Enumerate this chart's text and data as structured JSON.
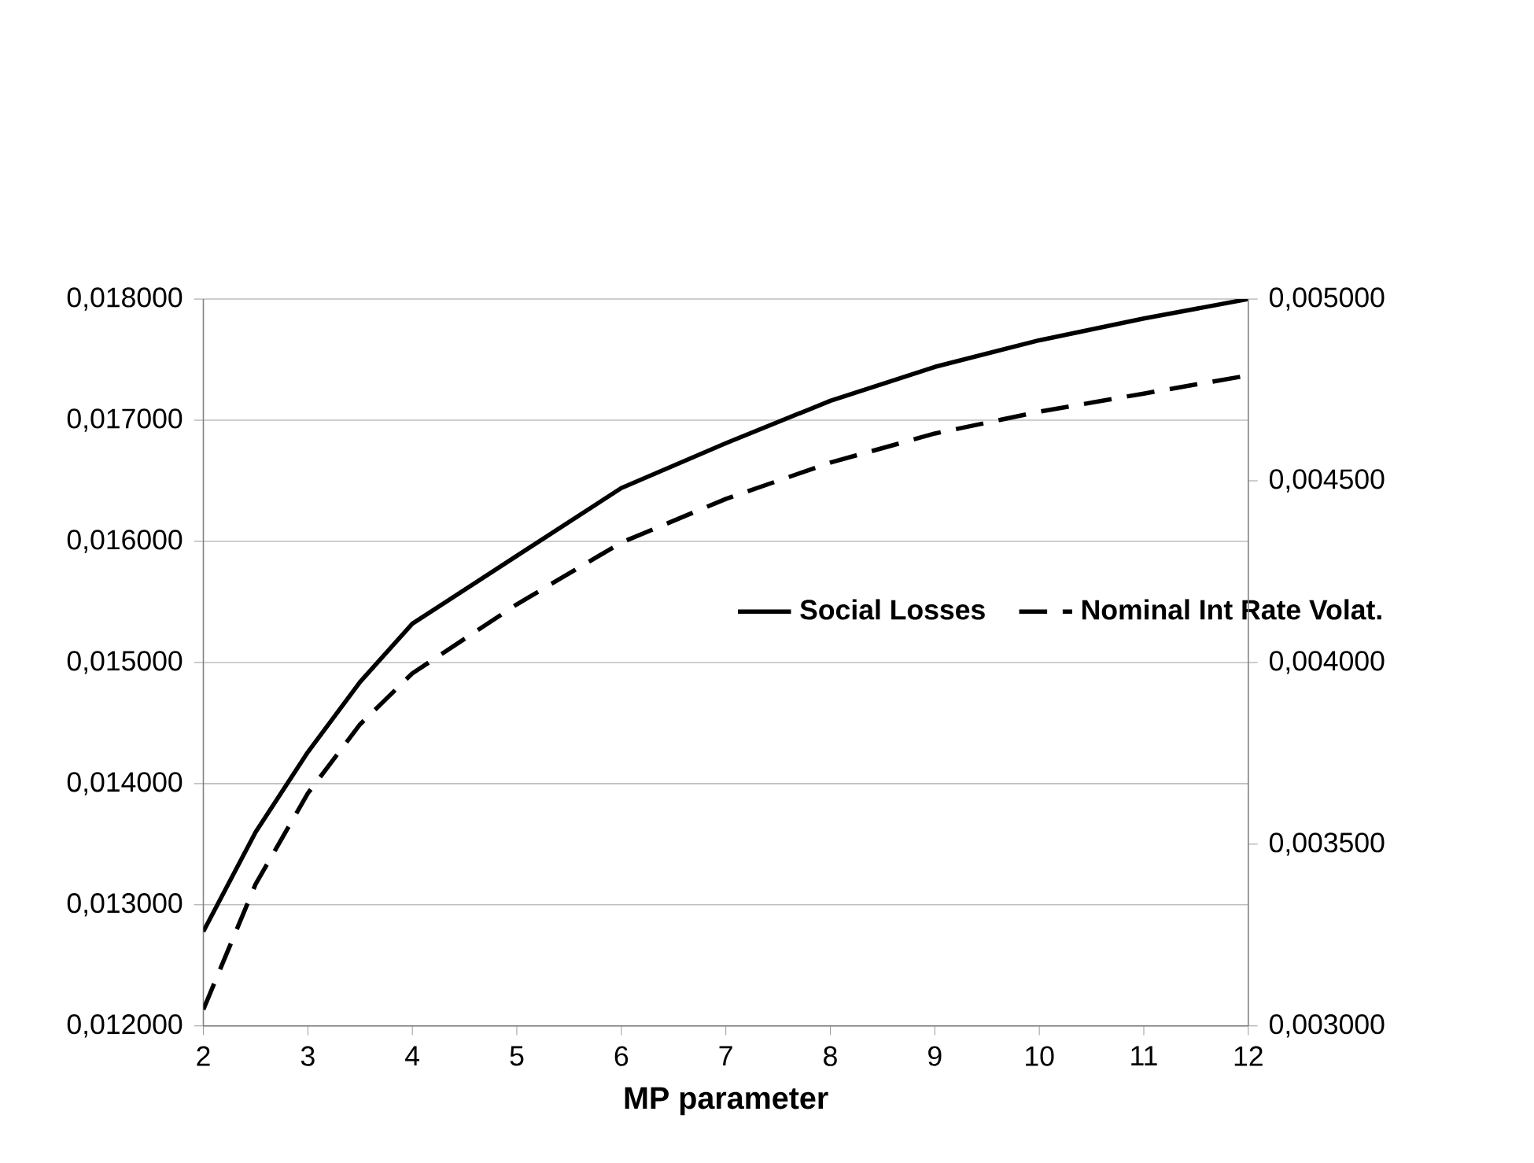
{
  "chart_data": {
    "type": "line",
    "xlabel": "MP parameter",
    "x": [
      2,
      2.5,
      3,
      3.5,
      4,
      5,
      6,
      7,
      8,
      9,
      10,
      11,
      12
    ],
    "series": [
      {
        "name": "Social Losses",
        "color": "#000000",
        "line_style": "solid",
        "values": [
          0.01278,
          0.0136,
          0.01426,
          0.01484,
          0.01532,
          0.01588,
          0.01644,
          0.01681,
          0.01716,
          0.01744,
          0.01766,
          0.01784,
          0.018
        ]
      },
      {
        "name": "Nominal Int Rate Volat.",
        "color": "#000000",
        "line_style": "dashed",
        "axis": "y2",
        "values": [
          0.003045,
          0.00339,
          0.00364,
          0.00383,
          0.00397,
          0.00416,
          0.00433,
          0.00445,
          0.00455,
          0.00463,
          0.00469,
          0.00474,
          0.00479
        ]
      }
    ],
    "xlim": [
      2,
      12
    ],
    "xticks": [
      2,
      3,
      4,
      5,
      6,
      7,
      8,
      9,
      10,
      11,
      12
    ],
    "ylim": [
      0.012,
      0.018
    ],
    "yticks": [
      {
        "value": 0.012,
        "label": "0,012000"
      },
      {
        "value": 0.013,
        "label": "0,013000"
      },
      {
        "value": 0.014,
        "label": "0,014000"
      },
      {
        "value": 0.015,
        "label": "0,015000"
      },
      {
        "value": 0.016,
        "label": "0,016000"
      },
      {
        "value": 0.017,
        "label": "0,017000"
      },
      {
        "value": 0.018,
        "label": "0,018000"
      }
    ],
    "y2lim": [
      0.003,
      0.005
    ],
    "y2ticks": [
      {
        "value": 0.003,
        "label": "0,003000"
      },
      {
        "value": 0.0035,
        "label": "0,003500"
      },
      {
        "value": 0.004,
        "label": "0,004000"
      },
      {
        "value": 0.0045,
        "label": "0,004500"
      },
      {
        "value": 0.005,
        "label": "0,005000"
      }
    ],
    "grid": "y",
    "legend": "right",
    "marker": "none"
  }
}
